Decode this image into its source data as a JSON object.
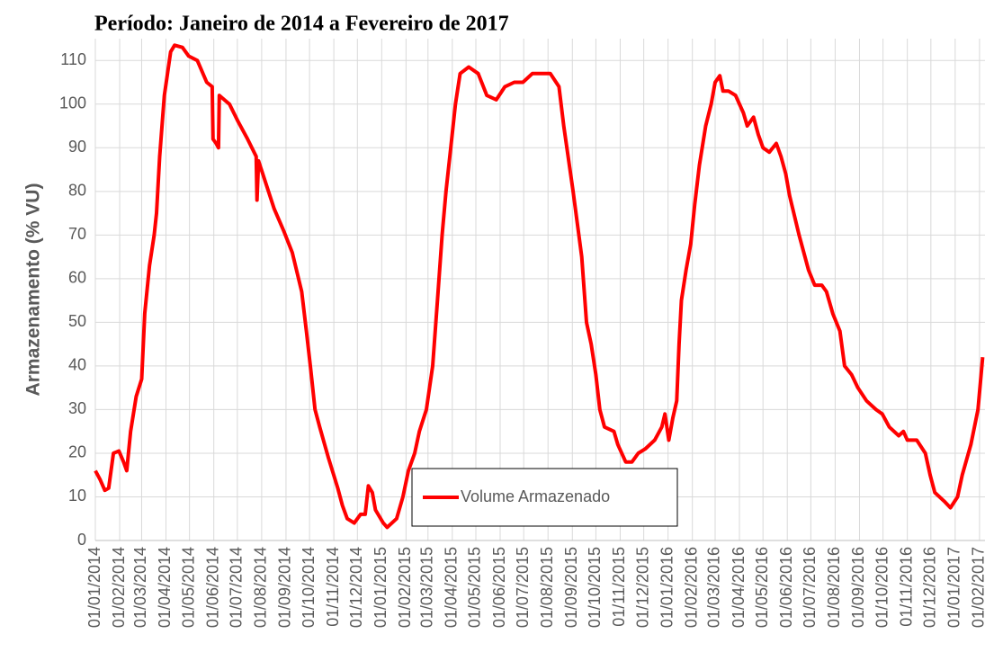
{
  "chart_data": {
    "type": "line",
    "title": "Período: Janeiro de 2014 a Fevereiro de 2017",
    "y_label": "Armazenamento (% VU)",
    "legend": "lower center",
    "grid": true,
    "ylim": [
      0,
      115
    ],
    "yticks": [
      0,
      10,
      20,
      30,
      40,
      50,
      60,
      70,
      80,
      90,
      100,
      110
    ],
    "xlim": [
      "01/01/2014",
      "08/02/2017"
    ],
    "xticks": [
      "01/01/2014",
      "01/02/2014",
      "01/03/2014",
      "01/04/2014",
      "01/05/2014",
      "01/06/2014",
      "01/07/2014",
      "01/08/2014",
      "01/09/2014",
      "01/10/2014",
      "01/11/2014",
      "01/12/2014",
      "01/01/2015",
      "01/02/2015",
      "01/03/2015",
      "01/04/2015",
      "01/05/2015",
      "01/06/2015",
      "01/07/2015",
      "01/08/2015",
      "01/09/2015",
      "01/10/2015",
      "01/11/2015",
      "01/12/2015",
      "01/01/2016",
      "01/02/2016",
      "01/03/2016",
      "01/04/2016",
      "01/05/2016",
      "01/06/2016",
      "01/07/2016",
      "01/08/2016",
      "01/09/2016",
      "01/10/2016",
      "01/11/2016",
      "01/12/2016",
      "01/01/2017",
      "01/02/2017"
    ],
    "x": [
      "01/01/2014",
      "07/01/2014",
      "13/01/2014",
      "18/01/2014",
      "24/01/2014",
      "31/01/2014",
      "06/02/2014",
      "10/02/2014",
      "15/02/2014",
      "22/02/2014",
      "01/03/2014",
      "05/03/2014",
      "11/03/2014",
      "17/03/2014",
      "20/03/2014",
      "24/03/2014",
      "30/03/2014",
      "07/04/2014",
      "12/04/2014",
      "22/04/2014",
      "30/04/2014",
      "11/05/2014",
      "23/05/2014",
      "30/05/2014",
      "31/05/2014",
      "04/06/2014",
      "07/06/2014",
      "08/06/2014",
      "21/06/2014",
      "02/07/2014",
      "14/07/2014",
      "25/07/2014",
      "26/07/2014",
      "28/07/2014",
      "06/08/2014",
      "17/08/2014",
      "29/08/2014",
      "09/09/2014",
      "21/09/2014",
      "27/09/2014",
      "02/10/2014",
      "08/10/2014",
      "14/10/2014",
      "25/10/2014",
      "06/11/2014",
      "12/11/2014",
      "18/11/2014",
      "27/11/2014",
      "05/12/2014",
      "11/12/2014",
      "15/12/2014",
      "20/12/2014",
      "24/12/2014",
      "03/01/2015",
      "08/01/2015",
      "20/01/2015",
      "28/01/2015",
      "04/02/2015",
      "12/02/2015",
      "18/02/2015",
      "27/02/2015",
      "07/03/2015",
      "13/03/2015",
      "19/03/2015",
      "24/03/2015",
      "30/03/2015",
      "05/04/2015",
      "11/04/2015",
      "22/04/2015",
      "04/05/2015",
      "15/05/2015",
      "27/05/2015",
      "07/06/2015",
      "19/06/2015",
      "30/06/2015",
      "12/07/2015",
      "23/07/2015",
      "04/08/2015",
      "15/08/2015",
      "21/08/2015",
      "02/09/2015",
      "13/09/2015",
      "19/09/2015",
      "25/09/2015",
      "01/10/2015",
      "06/10/2015",
      "12/10/2015",
      "24/10/2015",
      "29/10/2015",
      "08/11/2015",
      "16/11/2015",
      "24/11/2015",
      "03/12/2015",
      "15/12/2015",
      "24/12/2015",
      "28/12/2015",
      "02/01/2016",
      "07/01/2016",
      "12/01/2016",
      "15/01/2016",
      "18/01/2016",
      "24/01/2016",
      "30/01/2016",
      "04/02/2016",
      "10/02/2016",
      "18/02/2016",
      "25/02/2016",
      "01/03/2016",
      "07/03/2016",
      "11/03/2016",
      "18/03/2016",
      "27/03/2016",
      "06/04/2016",
      "11/04/2016",
      "19/04/2016",
      "25/04/2016",
      "01/05/2016",
      "09/05/2016",
      "18/05/2016",
      "24/05/2016",
      "30/05/2016",
      "04/06/2016",
      "16/06/2016",
      "28/06/2016",
      "06/07/2016",
      "15/07/2016",
      "21/07/2016",
      "29/07/2016",
      "07/08/2016",
      "13/08/2016",
      "22/08/2016",
      "30/08/2016",
      "10/09/2016",
      "22/09/2016",
      "30/09/2016",
      "09/10/2016",
      "21/10/2016",
      "27/10/2016",
      "01/11/2016",
      "13/11/2016",
      "24/11/2016",
      "30/11/2016",
      "06/12/2016",
      "18/12/2016",
      "26/12/2016",
      "04/01/2017",
      "10/01/2017",
      "21/01/2017",
      "30/01/2017",
      "05/02/2017"
    ],
    "series": [
      {
        "name": "Volume Armazenado",
        "color": "#ff0000",
        "values": [
          16,
          14,
          11.5,
          12,
          20,
          20.5,
          18,
          16,
          25,
          33,
          37,
          52,
          63,
          70,
          75,
          88,
          102,
          112,
          113.5,
          113,
          111,
          110,
          105,
          104,
          92,
          91,
          90,
          102,
          100,
          96,
          92,
          88,
          78,
          87,
          82,
          76,
          71,
          66,
          57,
          48,
          40,
          30,
          26,
          19,
          12,
          8,
          5,
          4,
          6,
          6,
          12.5,
          11,
          7,
          4,
          3,
          5,
          10,
          16,
          20,
          25,
          30,
          40,
          55,
          70,
          80,
          90,
          100,
          107,
          108.5,
          107,
          102,
          101,
          104,
          105,
          105,
          107,
          107,
          107,
          104,
          95,
          80,
          65,
          50,
          45,
          38,
          30,
          26,
          25,
          22,
          18,
          18,
          20,
          21,
          23,
          26,
          29,
          23,
          28,
          32,
          45,
          55,
          62,
          68,
          77,
          86,
          95,
          100,
          105,
          106.5,
          103,
          103,
          102,
          98,
          95,
          97,
          93,
          90,
          89,
          91,
          88,
          84,
          79,
          70,
          62,
          58.5,
          58.5,
          57,
          52,
          48,
          40,
          38,
          35,
          32,
          30,
          29,
          26,
          24,
          25,
          23,
          23,
          20,
          15,
          11,
          9,
          7.5,
          10,
          15,
          22,
          30,
          42
        ]
      }
    ]
  }
}
